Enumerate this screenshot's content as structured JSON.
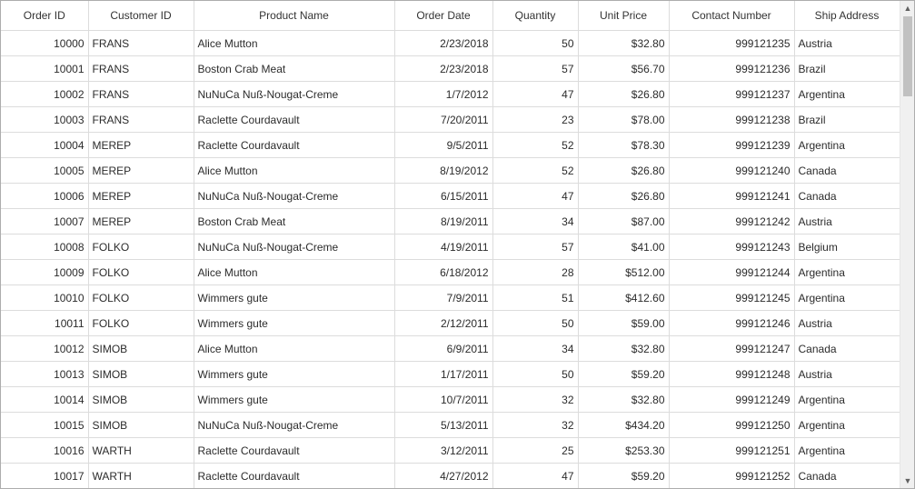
{
  "grid": {
    "columns": [
      {
        "key": "order_id",
        "label": "Order ID",
        "align": "num"
      },
      {
        "key": "customer_id",
        "label": "Customer ID",
        "align": "txt"
      },
      {
        "key": "product_name",
        "label": "Product Name",
        "align": "txt"
      },
      {
        "key": "order_date",
        "label": "Order Date",
        "align": "num"
      },
      {
        "key": "quantity",
        "label": "Quantity",
        "align": "num"
      },
      {
        "key": "unit_price",
        "label": "Unit Price",
        "align": "num"
      },
      {
        "key": "contact_number",
        "label": "Contact Number",
        "align": "num"
      },
      {
        "key": "ship_address",
        "label": "Ship Address",
        "align": "txt"
      }
    ],
    "rows": [
      [
        "10000",
        "FRANS",
        "Alice Mutton",
        "2/23/2018",
        "50",
        "$32.80",
        "999121235",
        "Austria"
      ],
      [
        "10001",
        "FRANS",
        "Boston Crab Meat",
        "2/23/2018",
        "57",
        "$56.70",
        "999121236",
        "Brazil"
      ],
      [
        "10002",
        "FRANS",
        "NuNuCa Nuß-Nougat-Creme",
        "1/7/2012",
        "47",
        "$26.80",
        "999121237",
        "Argentina"
      ],
      [
        "10003",
        "FRANS",
        "Raclette Courdavault",
        "7/20/2011",
        "23",
        "$78.00",
        "999121238",
        "Brazil"
      ],
      [
        "10004",
        "MEREP",
        "Raclette Courdavault",
        "9/5/2011",
        "52",
        "$78.30",
        "999121239",
        "Argentina"
      ],
      [
        "10005",
        "MEREP",
        "Alice Mutton",
        "8/19/2012",
        "52",
        "$26.80",
        "999121240",
        "Canada"
      ],
      [
        "10006",
        "MEREP",
        "NuNuCa Nuß-Nougat-Creme",
        "6/15/2011",
        "47",
        "$26.80",
        "999121241",
        "Canada"
      ],
      [
        "10007",
        "MEREP",
        "Boston Crab Meat",
        "8/19/2011",
        "34",
        "$87.00",
        "999121242",
        "Austria"
      ],
      [
        "10008",
        "FOLKO",
        "NuNuCa Nuß-Nougat-Creme",
        "4/19/2011",
        "57",
        "$41.00",
        "999121243",
        "Belgium"
      ],
      [
        "10009",
        "FOLKO",
        "Alice Mutton",
        "6/18/2012",
        "28",
        "$512.00",
        "999121244",
        "Argentina"
      ],
      [
        "10010",
        "FOLKO",
        "Wimmers gute",
        "7/9/2011",
        "51",
        "$412.60",
        "999121245",
        "Argentina"
      ],
      [
        "10011",
        "FOLKO",
        "Wimmers gute",
        "2/12/2011",
        "50",
        "$59.00",
        "999121246",
        "Austria"
      ],
      [
        "10012",
        "SIMOB",
        "Alice Mutton",
        "6/9/2011",
        "34",
        "$32.80",
        "999121247",
        "Canada"
      ],
      [
        "10013",
        "SIMOB",
        "Wimmers gute",
        "1/17/2011",
        "50",
        "$59.20",
        "999121248",
        "Austria"
      ],
      [
        "10014",
        "SIMOB",
        "Wimmers gute",
        "10/7/2011",
        "32",
        "$32.80",
        "999121249",
        "Argentina"
      ],
      [
        "10015",
        "SIMOB",
        "NuNuCa Nuß-Nougat-Creme",
        "5/13/2011",
        "32",
        "$434.20",
        "999121250",
        "Argentina"
      ],
      [
        "10016",
        "WARTH",
        "Raclette Courdavault",
        "3/12/2011",
        "25",
        "$253.30",
        "999121251",
        "Argentina"
      ],
      [
        "10017",
        "WARTH",
        "Raclette Courdavault",
        "4/27/2012",
        "47",
        "$59.20",
        "999121252",
        "Canada"
      ]
    ]
  },
  "scrollbar": {
    "up_icon": "chevron-up-icon",
    "down_icon": "chevron-down-icon"
  }
}
